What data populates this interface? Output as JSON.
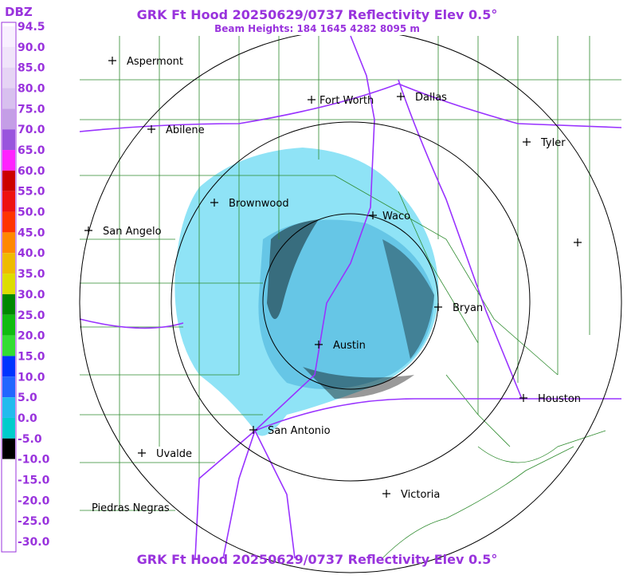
{
  "header": {
    "title": "GRK Ft Hood 20250629/0737 Reflectivity Elev 0.5°",
    "subtitle": "Beam Heights: 184 1645 4282 8095 m"
  },
  "legend": {
    "unit": "DBZ",
    "labels": [
      "94.5",
      "90.0",
      "85.0",
      "80.0",
      "75.0",
      "70.0",
      "65.0",
      "60.0",
      "55.0",
      "50.0",
      "45.0",
      "40.0",
      "35.0",
      "30.0",
      "25.0",
      "20.0",
      "15.0",
      "10.0",
      "5.0",
      "0.0",
      "-5.0",
      "-10.0",
      "-15.0",
      "-20.0",
      "-25.0",
      "-30.0"
    ]
  },
  "cities": [
    "Aspermont",
    "Fort Worth",
    "Dallas",
    "Abilene",
    "Tyler",
    "Brownwood",
    "Waco",
    "San Angelo",
    "Bryan",
    "Austin",
    "Houston",
    "San Antonio",
    "Uvalde",
    "Victoria",
    "Piedras Negras"
  ],
  "footer": {
    "title": "GRK Ft Hood 20250629/0737 Reflectivity Elev 0.5°"
  }
}
